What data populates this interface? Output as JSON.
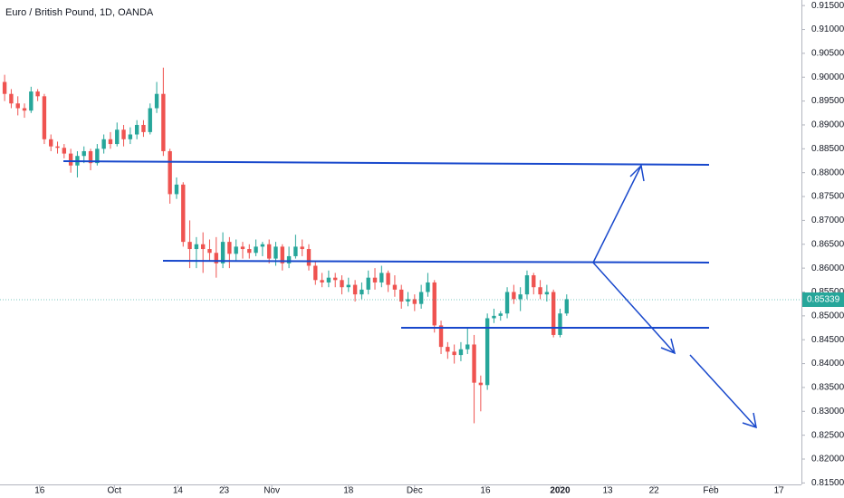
{
  "chart_data": {
    "type": "candlestick",
    "title": "Euro / British Pound, 1D, OANDA",
    "up_color": "#26a69a",
    "down_color": "#ef5350",
    "open": [
      0.899,
      0.8965,
      0.8945,
      0.8935,
      0.893,
      0.897,
      0.896,
      0.887,
      0.8855,
      0.8852,
      0.884,
      0.8815,
      0.8835,
      0.8845,
      0.882,
      0.885,
      0.887,
      0.886,
      0.889,
      0.887,
      0.888,
      0.89,
      0.8885,
      0.8935,
      0.8965,
      0.8845,
      0.8755,
      0.8775,
      0.8655,
      0.864,
      0.865,
      0.864,
      0.8632,
      0.861,
      0.8655,
      0.863,
      0.8645,
      0.864,
      0.8632,
      0.8645,
      0.865,
      0.862,
      0.8645,
      0.861,
      0.8625,
      0.8645,
      0.864,
      0.8605,
      0.8575,
      0.857,
      0.858,
      0.8575,
      0.856,
      0.8565,
      0.8545,
      0.8555,
      0.858,
      0.857,
      0.859,
      0.8565,
      0.8555,
      0.853,
      0.8535,
      0.8525,
      0.855,
      0.857,
      0.848,
      0.8435,
      0.8425,
      0.8418,
      0.843,
      0.844,
      0.836,
      0.8355,
      0.8495,
      0.85,
      0.8505,
      0.855,
      0.8535,
      0.8545,
      0.8585,
      0.856,
      0.8545,
      0.855,
      0.846,
      0.8505
    ],
    "high": [
      0.9005,
      0.8975,
      0.896,
      0.8945,
      0.898,
      0.8975,
      0.8965,
      0.888,
      0.8865,
      0.886,
      0.885,
      0.8845,
      0.8855,
      0.885,
      0.886,
      0.888,
      0.8885,
      0.8905,
      0.89,
      0.8895,
      0.891,
      0.891,
      0.8945,
      0.899,
      0.902,
      0.885,
      0.879,
      0.878,
      0.87,
      0.8665,
      0.8675,
      0.866,
      0.8665,
      0.8675,
      0.8665,
      0.866,
      0.8655,
      0.865,
      0.866,
      0.8655,
      0.866,
      0.8655,
      0.865,
      0.8645,
      0.867,
      0.866,
      0.865,
      0.8615,
      0.859,
      0.8595,
      0.859,
      0.8585,
      0.858,
      0.8575,
      0.857,
      0.8595,
      0.86,
      0.8605,
      0.8595,
      0.8585,
      0.8565,
      0.855,
      0.8545,
      0.8565,
      0.859,
      0.8575,
      0.849,
      0.8445,
      0.844,
      0.8445,
      0.8475,
      0.846,
      0.8375,
      0.8505,
      0.8515,
      0.851,
      0.856,
      0.8565,
      0.856,
      0.8595,
      0.859,
      0.8575,
      0.8565,
      0.8555,
      0.8515,
      0.8545
    ],
    "low": [
      0.895,
      0.8935,
      0.892,
      0.8915,
      0.8925,
      0.895,
      0.886,
      0.8845,
      0.884,
      0.883,
      0.88,
      0.879,
      0.882,
      0.8805,
      0.8815,
      0.884,
      0.885,
      0.8855,
      0.8855,
      0.886,
      0.887,
      0.8875,
      0.888,
      0.8925,
      0.8835,
      0.8735,
      0.8745,
      0.8645,
      0.86,
      0.86,
      0.859,
      0.8615,
      0.858,
      0.86,
      0.86,
      0.8615,
      0.862,
      0.862,
      0.8625,
      0.8625,
      0.861,
      0.8605,
      0.8595,
      0.86,
      0.862,
      0.8625,
      0.8595,
      0.8565,
      0.856,
      0.856,
      0.856,
      0.8545,
      0.855,
      0.853,
      0.8535,
      0.8545,
      0.8555,
      0.856,
      0.855,
      0.854,
      0.8515,
      0.852,
      0.851,
      0.8515,
      0.854,
      0.8465,
      0.842,
      0.841,
      0.84,
      0.8405,
      0.842,
      0.8275,
      0.83,
      0.8345,
      0.8485,
      0.849,
      0.8495,
      0.8525,
      0.851,
      0.8535,
      0.8545,
      0.8535,
      0.853,
      0.8455,
      0.8455,
      0.85
    ],
    "close": [
      0.8965,
      0.8945,
      0.8935,
      0.893,
      0.897,
      0.896,
      0.887,
      0.8855,
      0.8852,
      0.884,
      0.8815,
      0.8835,
      0.8845,
      0.882,
      0.885,
      0.887,
      0.886,
      0.889,
      0.887,
      0.888,
      0.89,
      0.8885,
      0.8935,
      0.8965,
      0.8845,
      0.8755,
      0.8775,
      0.8655,
      0.864,
      0.865,
      0.864,
      0.8632,
      0.861,
      0.8655,
      0.863,
      0.8645,
      0.864,
      0.8632,
      0.8645,
      0.865,
      0.862,
      0.8645,
      0.861,
      0.8625,
      0.8645,
      0.864,
      0.8605,
      0.8575,
      0.857,
      0.858,
      0.8575,
      0.856,
      0.8565,
      0.8545,
      0.8555,
      0.858,
      0.857,
      0.859,
      0.8565,
      0.8555,
      0.853,
      0.8535,
      0.8525,
      0.855,
      0.857,
      0.848,
      0.8435,
      0.8425,
      0.8418,
      0.843,
      0.844,
      0.836,
      0.8355,
      0.8495,
      0.85,
      0.8505,
      0.855,
      0.8535,
      0.8545,
      0.8585,
      0.856,
      0.8545,
      0.855,
      0.846,
      0.8505,
      0.8535
    ],
    "last_price": 0.85339,
    "xlim": [
      -0.7,
      120.5
    ],
    "xticks": [
      {
        "value": 5.3,
        "label": "16"
      },
      {
        "value": 16.6,
        "label": "Oct"
      },
      {
        "value": 26.2,
        "label": "14"
      },
      {
        "value": 33.2,
        "label": "23"
      },
      {
        "value": 40.4,
        "label": "Nov"
      },
      {
        "value": 52,
        "label": "18"
      },
      {
        "value": 62,
        "label": "Dec"
      },
      {
        "value": 72.7,
        "label": "16"
      },
      {
        "value": 84,
        "label": "2020"
      },
      {
        "value": 91.2,
        "label": "13"
      },
      {
        "value": 98.2,
        "label": "22"
      },
      {
        "value": 106.8,
        "label": "Feb"
      },
      {
        "value": 117.1,
        "label": "17"
      }
    ],
    "ylim": [
      0.81469,
      0.91617
    ],
    "yticks": [
      {
        "value": 0.915,
        "label": "0.91500"
      },
      {
        "value": 0.91,
        "label": "0.91000"
      },
      {
        "value": 0.905,
        "label": "0.90500"
      },
      {
        "value": 0.9,
        "label": "0.90000"
      },
      {
        "value": 0.895,
        "label": "0.89500"
      },
      {
        "value": 0.89,
        "label": "0.89000"
      },
      {
        "value": 0.885,
        "label": "0.88500"
      },
      {
        "value": 0.88,
        "label": "0.88000"
      },
      {
        "value": 0.875,
        "label": "0.87500"
      },
      {
        "value": 0.87,
        "label": "0.87000"
      },
      {
        "value": 0.865,
        "label": "0.86500"
      },
      {
        "value": 0.86,
        "label": "0.86000"
      },
      {
        "value": 0.855,
        "label": "0.85500"
      },
      {
        "value": 0.85,
        "label": "0.85000"
      },
      {
        "value": 0.845,
        "label": "0.84500"
      },
      {
        "value": 0.84,
        "label": "0.84000"
      },
      {
        "value": 0.835,
        "label": "0.83500"
      },
      {
        "value": 0.83,
        "label": "0.83000"
      },
      {
        "value": 0.825,
        "label": "0.82500"
      },
      {
        "value": 0.82,
        "label": "0.82000"
      },
      {
        "value": 0.815,
        "label": "0.81500"
      }
    ],
    "grid": false
  }
}
